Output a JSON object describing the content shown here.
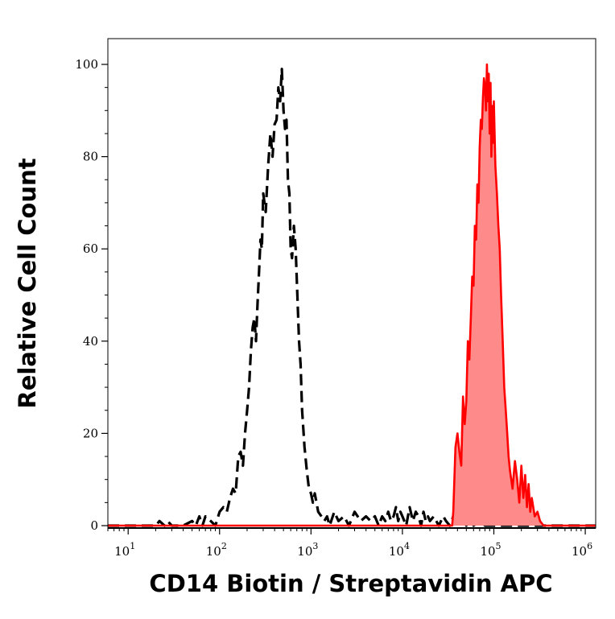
{
  "chart_data": {
    "type": "area",
    "title": "",
    "xlabel": "CD14 Biotin / Streptavidin APC",
    "ylabel": "Relative Cell Count",
    "xscale": "log",
    "xlim": [
      6,
      1300000
    ],
    "ylim": [
      0,
      100
    ],
    "x_ticks": [
      {
        "value": 10,
        "base": "10",
        "exp": "1"
      },
      {
        "value": 100,
        "base": "10",
        "exp": "2"
      },
      {
        "value": 1000,
        "base": "10",
        "exp": "3"
      },
      {
        "value": 10000,
        "base": "10",
        "exp": "4"
      },
      {
        "value": 100000,
        "base": "10",
        "exp": "5"
      },
      {
        "value": 1000000,
        "base": "10",
        "exp": "6"
      }
    ],
    "y_ticks": [
      "0",
      "20",
      "40",
      "60",
      "80",
      "100"
    ],
    "grid": false,
    "legend": "none",
    "series": [
      {
        "style": "dashed",
        "color": "#000000",
        "fill": "none",
        "x": [
          6,
          20,
          22,
          25,
          27,
          30,
          40,
          50,
          55,
          60,
          65,
          70,
          80,
          90,
          100,
          110,
          120,
          130,
          140,
          150,
          160,
          170,
          180,
          190,
          200,
          210,
          220,
          230,
          240,
          250,
          260,
          270,
          280,
          290,
          300,
          320,
          340,
          360,
          380,
          400,
          420,
          440,
          460,
          480,
          500,
          520,
          540,
          560,
          580,
          600,
          620,
          650,
          680,
          710,
          740,
          770,
          800,
          850,
          900,
          950,
          1000,
          1050,
          1100,
          1200,
          1300,
          1400,
          1500,
          1600,
          1800,
          2000,
          2300,
          2600,
          3000,
          3500,
          4000,
          4500,
          5000,
          5500,
          6000,
          6500,
          7000,
          7500,
          8000,
          8500,
          9000,
          9500,
          10000,
          11000,
          12000,
          13000,
          14000,
          15000,
          16000,
          17000,
          18000,
          19000,
          20000,
          22000,
          25000,
          28000,
          30000,
          33000,
          36000,
          40000,
          45000,
          50000,
          55000,
          60000,
          70000,
          80000,
          90000,
          100000,
          200000,
          1300000
        ],
        "values": [
          0,
          0,
          1,
          0,
          1,
          0,
          0,
          1,
          0,
          2,
          0,
          2,
          1,
          0,
          3,
          4,
          3,
          6,
          8,
          7,
          15,
          16,
          13,
          20,
          25,
          30,
          38,
          43,
          45,
          40,
          48,
          55,
          62,
          60,
          72,
          68,
          78,
          85,
          80,
          87,
          88,
          95,
          92,
          99,
          90,
          86,
          88,
          75,
          72,
          60,
          58,
          65,
          60,
          50,
          40,
          35,
          25,
          17,
          12,
          8,
          7,
          5,
          7,
          3,
          2,
          1,
          2,
          0,
          3,
          1,
          2,
          0,
          3,
          1,
          2,
          1,
          2,
          0,
          2,
          1,
          3,
          1,
          2,
          4,
          1,
          3,
          2,
          0,
          4,
          1,
          3,
          2,
          0,
          3,
          1,
          2,
          1,
          2,
          0,
          2,
          1,
          0,
          2,
          1,
          3,
          0,
          2,
          0,
          1,
          0,
          0,
          0,
          0,
          0
        ]
      },
      {
        "style": "solid",
        "color": "#ff0000",
        "fill": "#ff8a8a",
        "x": [
          6,
          30000,
          35000,
          36000,
          38000,
          40000,
          42000,
          44000,
          46000,
          48000,
          50000,
          52000,
          54000,
          56000,
          58000,
          60000,
          62000,
          64000,
          66000,
          68000,
          70000,
          72000,
          74000,
          76000,
          78000,
          80000,
          82000,
          84000,
          86000,
          88000,
          90000,
          92000,
          94000,
          96000,
          98000,
          100000,
          104000,
          108000,
          112000,
          116000,
          120000,
          125000,
          130000,
          135000,
          140000,
          145000,
          150000,
          160000,
          170000,
          180000,
          190000,
          200000,
          210000,
          220000,
          230000,
          240000,
          250000,
          260000,
          280000,
          300000,
          320000,
          350000,
          1300000
        ],
        "values": [
          0,
          0,
          0,
          3,
          17,
          20,
          16,
          13,
          28,
          22,
          27,
          40,
          36,
          45,
          54,
          52,
          65,
          62,
          74,
          70,
          82,
          88,
          86,
          93,
          97,
          95,
          90,
          100,
          92,
          98,
          85,
          96,
          80,
          91,
          83,
          92,
          78,
          72,
          65,
          60,
          50,
          40,
          30,
          25,
          20,
          15,
          12,
          8,
          14,
          10,
          5,
          13,
          6,
          11,
          4,
          9,
          3,
          6,
          2,
          3,
          1,
          0,
          0
        ]
      }
    ]
  }
}
